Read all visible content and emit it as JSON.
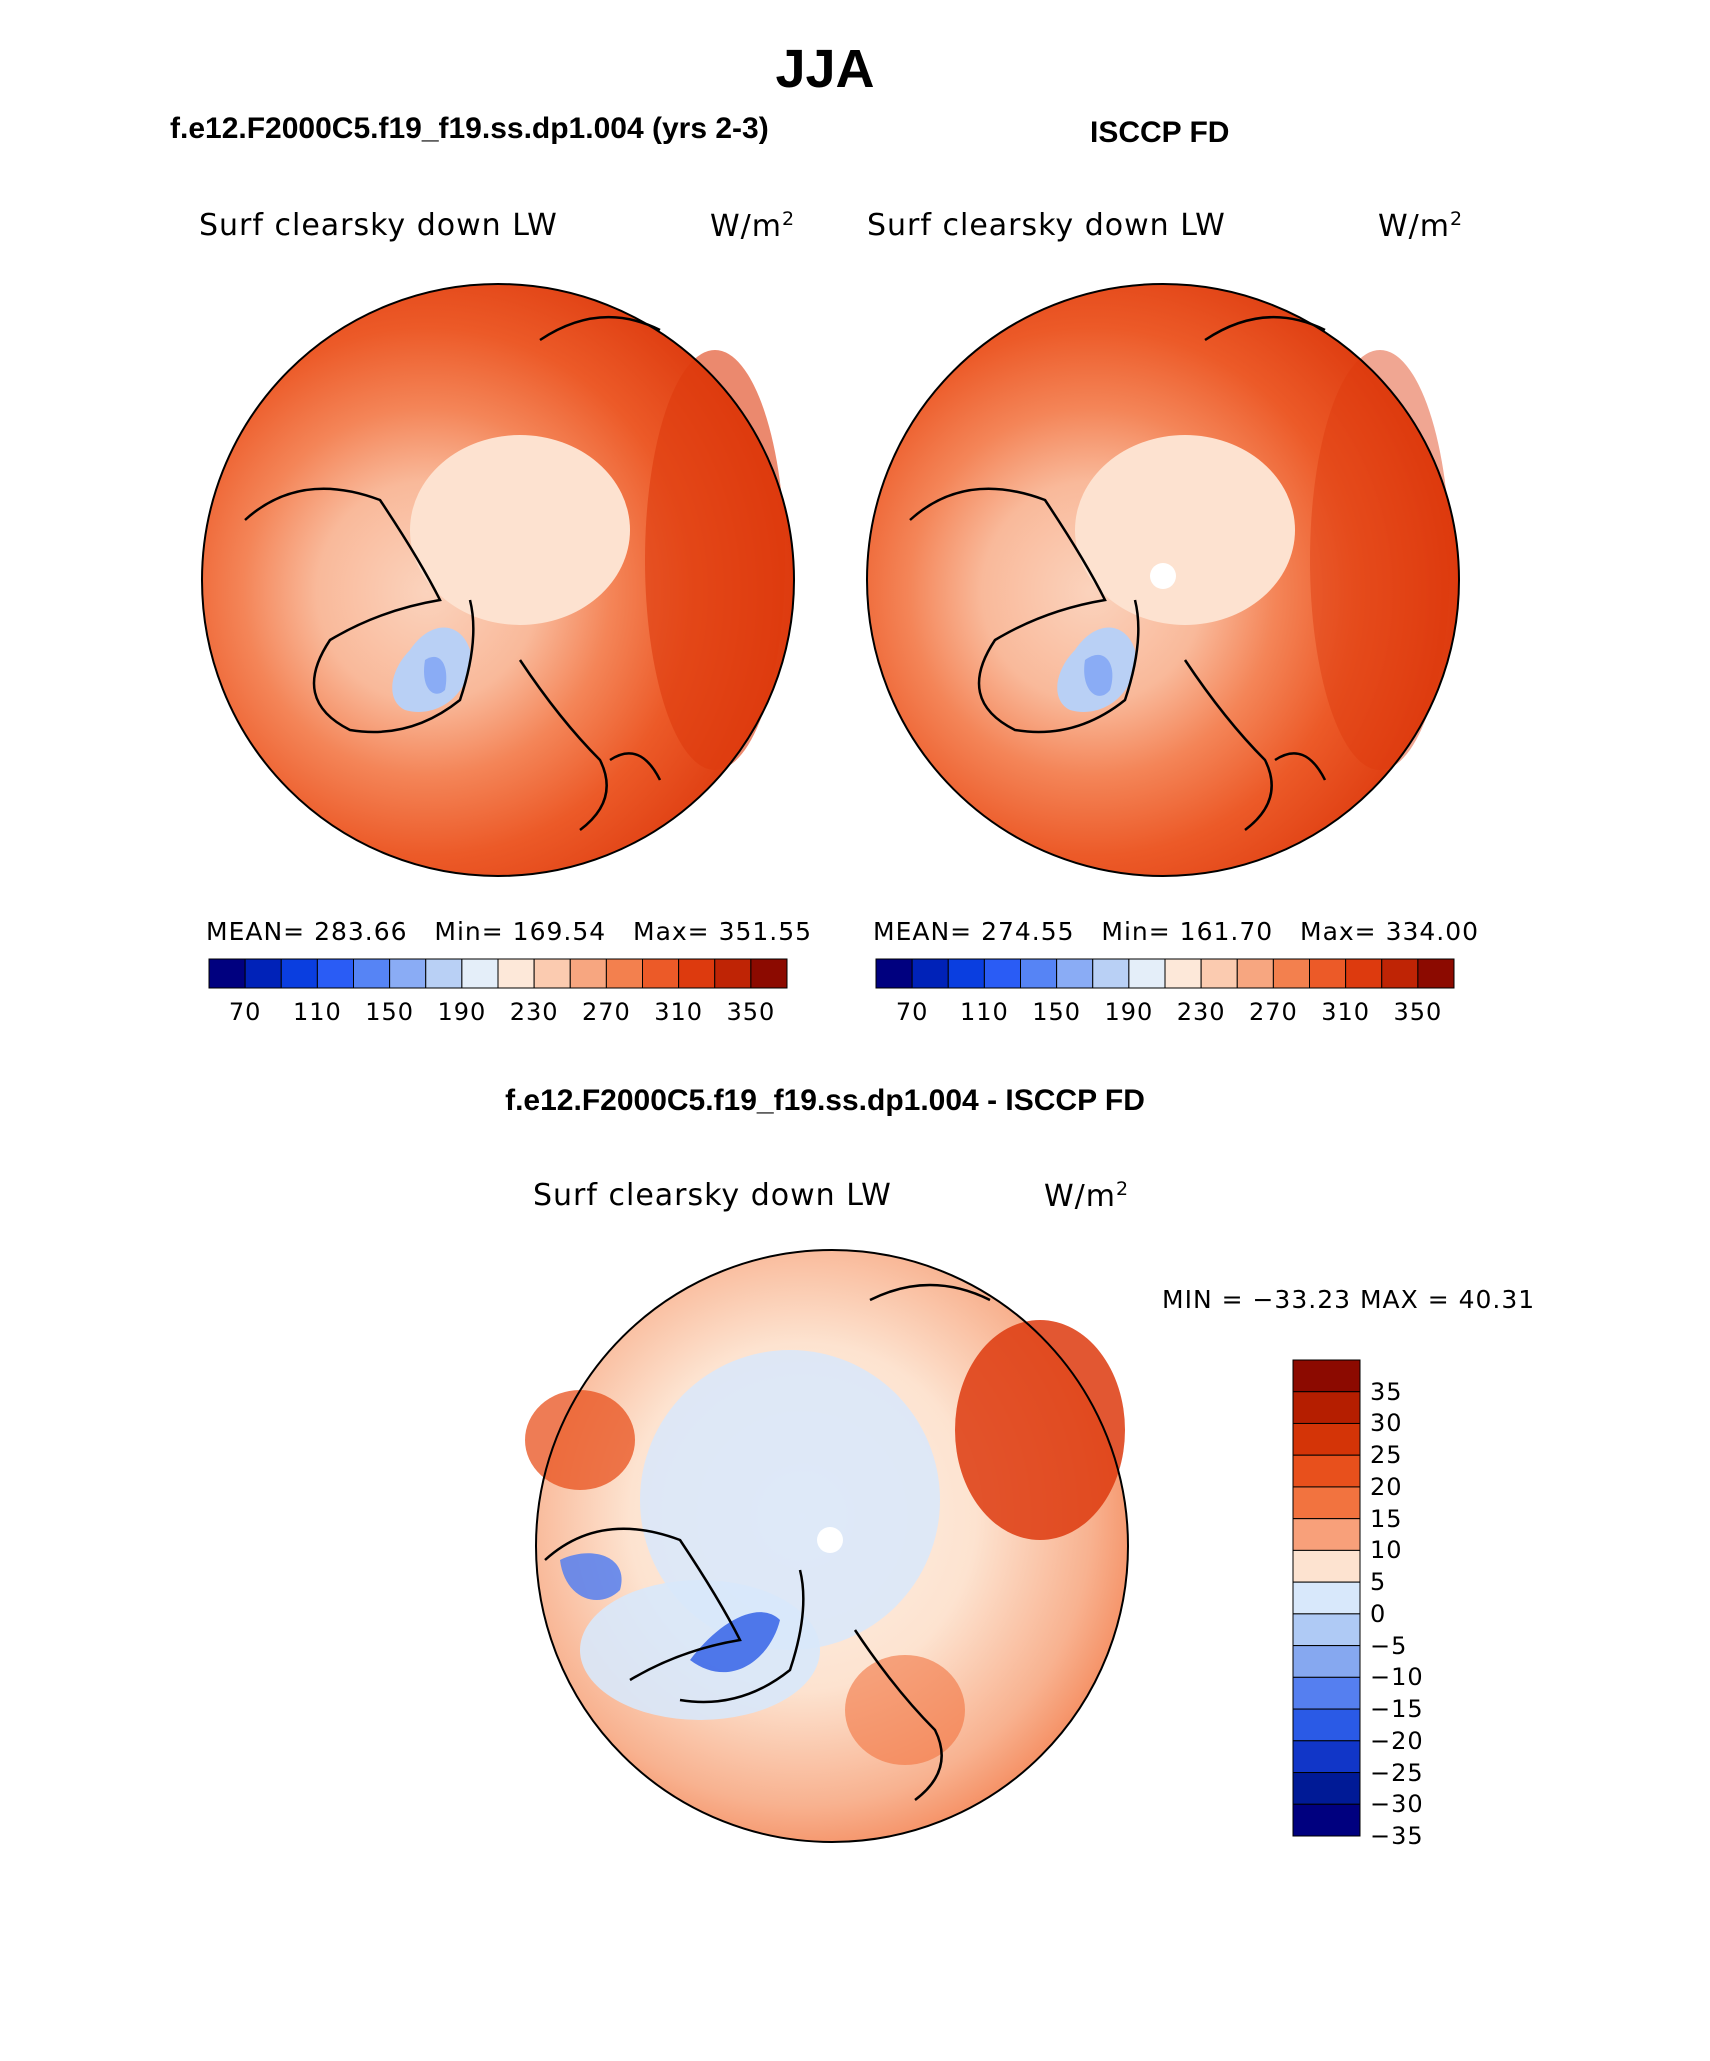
{
  "title": "JJA",
  "panels": [
    {
      "id": "model",
      "subtitle": "f.e12.F2000C5.f19_f19.ss.dp1.004 (yrs 2-3)",
      "var_label": "Surf clearsky down LW",
      "units_base": "W/m",
      "units_exp": "2",
      "stats": {
        "mean_label": "MEAN=",
        "mean": "283.66",
        "min_label": "Min=",
        "min": "169.54",
        "max_label": "Max=",
        "max": "351.55"
      }
    },
    {
      "id": "obs",
      "subtitle": "ISCCP FD",
      "var_label": "Surf clearsky down LW",
      "units_base": "W/m",
      "units_exp": "2",
      "stats": {
        "mean_label": "MEAN=",
        "mean": "274.55",
        "min_label": "Min=",
        "min": "161.70",
        "max_label": "Max=",
        "max": "334.00"
      }
    },
    {
      "id": "diff",
      "subtitle": "f.e12.F2000C5.f19_f19.ss.dp1.004 - ISCCP FD",
      "var_label": "Surf clearsky down LW",
      "units_base": "W/m",
      "units_exp": "2",
      "stats_text": "MIN = −33.23 MAX =  40.31"
    }
  ],
  "colorbar_abs": {
    "colors": [
      "#00007f",
      "#0022b8",
      "#0a3ee0",
      "#2a5cf5",
      "#5684f5",
      "#8aacf5",
      "#b9d0f5",
      "#e4eef9",
      "#fde8d9",
      "#fbcbb0",
      "#f7a680",
      "#f3804e",
      "#ec5a28",
      "#dd3a0e",
      "#bf2405",
      "#8c0a00"
    ],
    "ticks": [
      "70",
      "110",
      "150",
      "190",
      "230",
      "270",
      "310",
      "350"
    ]
  },
  "colorbar_diff": {
    "colors": [
      "#8c0a00",
      "#b51e00",
      "#d43407",
      "#e8501c",
      "#f2733f",
      "#f8a07a",
      "#fde3d0",
      "#d8e8fb",
      "#afcaf5",
      "#86a8f0",
      "#557ff0",
      "#2a5ae6",
      "#1136c8",
      "#001a96",
      "#00007f"
    ],
    "ticks": [
      "35",
      "30",
      "25",
      "20",
      "15",
      "10",
      "5",
      "0",
      "−5",
      "−10",
      "−15",
      "−20",
      "−25",
      "−30",
      "−35"
    ]
  }
}
